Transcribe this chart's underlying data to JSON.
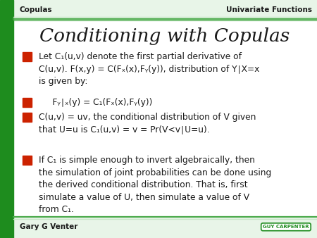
{
  "title": "Conditioning with Copulas",
  "header_left": "Copulas",
  "header_right": "Univariate Functions",
  "footer_left": "Gary G Venter",
  "footer_right": "GUY CARPENTER",
  "bg_color": "#ffffff",
  "left_bar_color": "#1e8c1e",
  "header_line_color1": "#4aaa4a",
  "header_line_color2": "#c8e6c8",
  "footer_line_color1": "#4aaa4a",
  "footer_line_color2": "#c8e6c8",
  "bullet_color": "#cc2200",
  "title_color": "#1a1a1a",
  "text_color": "#1a1a1a",
  "header_bg": "#e8f5e8",
  "bullet_points": [
    "Let C₁(u,v) denote the first partial derivative of\nC(u,v). F(x,y) = C(Fₓ(x),Fᵧ(y)), distribution of Y∣X=x\nis given by:",
    "     Fᵧ∣ₓ(y) = C₁(Fₓ(x),Fᵧ(y))",
    "C(u,v) = uv, the conditional distribution of V given\nthat U=u is C₁(u,v) = v = Pr(V<v∣U=u).",
    "If C₁ is simple enough to invert algebraically, then\nthe simulation of joint probabilities can be done using\nthe derived conditional distribution. That is, first\nsimulate a value of U, then simulate a value of V\nfrom C₁."
  ],
  "figsize": [
    4.5,
    3.38
  ],
  "dpi": 100
}
